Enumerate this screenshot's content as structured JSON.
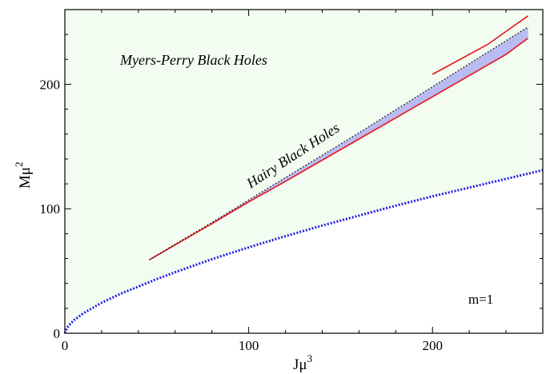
{
  "chart_data": {
    "type": "line",
    "title": "",
    "xlabel": "Jμ",
    "xlabel_sup": "3",
    "ylabel": "Mμ",
    "ylabel_sup": "2",
    "xlim": [
      0,
      260
    ],
    "ylim": [
      0,
      260
    ],
    "xticks": [
      0,
      100,
      200
    ],
    "yticks": [
      0,
      100,
      200
    ],
    "grid": false,
    "colors": {
      "myers_perry_region": "#f3fcf0",
      "hairy_region": "#b4b4f0",
      "red_line": "#e8141e",
      "blue_dotted": "#1e1ee6",
      "black_dotted": "#000000"
    },
    "annotations": {
      "myers_perry": "Myers-Perry Black Holes",
      "hairy": "Hairy Black Holes",
      "m": "m=1"
    },
    "series": [
      {
        "style": "dotted",
        "color": "#1e1ee6",
        "x": [
          0,
          1,
          2,
          5,
          10,
          20,
          30,
          40,
          50,
          60,
          80,
          100,
          120,
          140,
          160,
          180,
          200,
          220,
          240,
          260
        ],
        "y": [
          0,
          3.5,
          6,
          10.5,
          16,
          24.5,
          31.5,
          37.5,
          43.5,
          49,
          59.5,
          69,
          78,
          86.5,
          94.5,
          102.5,
          110,
          117,
          124,
          131
        ]
      },
      {
        "style": "solid",
        "color": "#e8141e",
        "x": [
          46,
          60,
          80,
          100,
          120,
          140,
          160,
          180,
          200,
          220,
          240,
          252
        ],
        "y": [
          59,
          71,
          88,
          105.5,
          122,
          139,
          156,
          173,
          190,
          207,
          224,
          237
        ]
      },
      {
        "style": "dotted",
        "color": "#000000",
        "x": [
          46,
          60,
          80,
          100,
          120,
          140,
          160,
          180,
          200,
          220,
          240,
          252
        ],
        "y": [
          59,
          71.5,
          89,
          107,
          125,
          143,
          161,
          179.5,
          198,
          216.5,
          235,
          246
        ]
      },
      {
        "style": "solid",
        "color": "#e8141e",
        "x": [
          200,
          230,
          252
        ],
        "y": [
          208,
          232,
          255
        ]
      }
    ]
  }
}
